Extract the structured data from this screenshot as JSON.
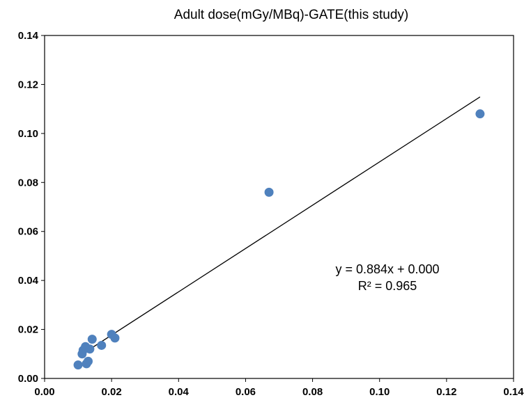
{
  "chart_data": {
    "type": "scatter",
    "title": "Adult dose(mGy/MBq)-GATE(this study)",
    "xlabel": "",
    "ylabel": "",
    "xlim": [
      0,
      0.14
    ],
    "ylim": [
      0,
      0.14
    ],
    "x_ticks": [
      "0.00",
      "0.02",
      "0.04",
      "0.06",
      "0.08",
      "0.10",
      "0.12",
      "0.14"
    ],
    "y_ticks": [
      "0.00",
      "0.02",
      "0.04",
      "0.06",
      "0.08",
      "0.10",
      "0.12",
      "0.14"
    ],
    "grid": false,
    "legend": "none",
    "marker_color": "#4F81BD",
    "series": [
      {
        "points": [
          {
            "x": 0.01,
            "y": 0.0055
          },
          {
            "x": 0.0115,
            "y": 0.0115
          },
          {
            "x": 0.0112,
            "y": 0.01
          },
          {
            "x": 0.0122,
            "y": 0.013
          },
          {
            "x": 0.0125,
            "y": 0.006
          },
          {
            "x": 0.013,
            "y": 0.007
          },
          {
            "x": 0.0135,
            "y": 0.012
          },
          {
            "x": 0.0142,
            "y": 0.016
          },
          {
            "x": 0.017,
            "y": 0.0135
          },
          {
            "x": 0.02,
            "y": 0.018
          },
          {
            "x": 0.021,
            "y": 0.0165
          },
          {
            "x": 0.067,
            "y": 0.076
          },
          {
            "x": 0.13,
            "y": 0.108
          }
        ]
      }
    ],
    "trendline": {
      "type": "linear",
      "slope": 0.884,
      "intercept": 0.0,
      "x_range": [
        0.0104,
        0.13
      ],
      "equation": "y = 0.884x + 0.000",
      "r_squared": "R² = 0.965"
    }
  }
}
